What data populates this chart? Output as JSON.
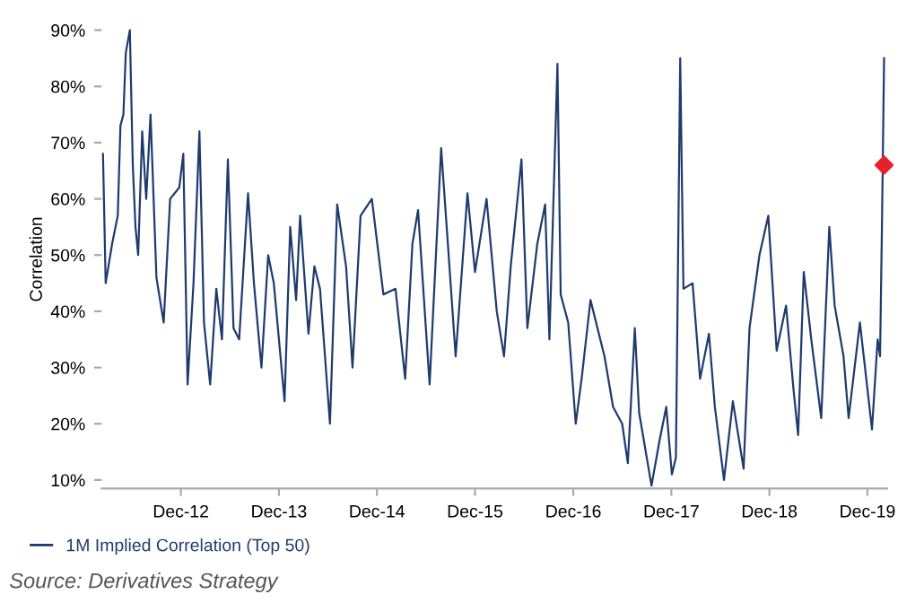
{
  "chart_data": {
    "type": "line",
    "ylabel": "Correlation",
    "x": [
      "2012-02-15",
      "2012-02-25",
      "2012-03-20",
      "2012-04-10",
      "2012-04-20",
      "2012-05-01",
      "2012-05-10",
      "2012-05-25",
      "2012-06-05",
      "2012-06-15",
      "2012-06-25",
      "2012-07-10",
      "2012-07-25",
      "2012-08-10",
      "2012-08-20",
      "2012-09-01",
      "2012-09-28",
      "2012-10-22",
      "2012-11-25",
      "2012-12-10",
      "2012-12-26",
      "2013-01-17",
      "2013-02-08",
      "2013-02-25",
      "2013-03-20",
      "2013-04-12",
      "2013-05-03",
      "2013-05-25",
      "2013-06-15",
      "2013-07-06",
      "2013-08-08",
      "2013-08-30",
      "2013-09-27",
      "2013-10-22",
      "2013-11-12",
      "2013-12-22",
      "2014-01-12",
      "2014-02-03",
      "2014-02-18",
      "2014-03-21",
      "2014-04-12",
      "2014-05-03",
      "2014-06-09",
      "2014-07-06",
      "2014-08-08",
      "2014-09-01",
      "2014-10-01",
      "2014-11-12",
      "2014-12-25",
      "2015-02-08",
      "2015-03-16",
      "2015-04-12",
      "2015-05-03",
      "2015-06-15",
      "2015-07-28",
      "2015-08-22",
      "2015-09-20",
      "2015-10-22",
      "2015-11-03",
      "2015-12-01",
      "2016-01-13",
      "2016-02-20",
      "2016-03-18",
      "2016-04-12",
      "2016-05-22",
      "2016-06-13",
      "2016-07-20",
      "2016-08-18",
      "2016-09-03",
      "2016-10-03",
      "2016-10-15",
      "2016-11-12",
      "2016-12-10",
      "2017-01-01",
      "2017-02-03",
      "2017-03-27",
      "2017-04-28",
      "2017-06-01",
      "2017-06-22",
      "2017-07-18",
      "2017-08-03",
      "2017-09-18",
      "2017-10-18",
      "2017-11-12",
      "2017-12-03",
      "2017-12-18",
      "2018-01-03",
      "2018-01-15",
      "2018-02-18",
      "2018-03-18",
      "2018-04-20",
      "2018-05-12",
      "2018-06-15",
      "2018-07-18",
      "2018-08-27",
      "2018-09-18",
      "2018-10-25",
      "2018-11-27",
      "2018-12-28",
      "2019-02-01",
      "2019-03-01",
      "2019-03-18",
      "2019-04-08",
      "2019-05-06",
      "2019-06-12",
      "2019-07-12",
      "2019-08-01",
      "2019-09-03",
      "2019-09-22",
      "2019-11-03",
      "2019-12-18",
      "2020-01-08",
      "2020-01-17",
      "2020-01-24",
      "2020-02-01"
    ],
    "series": [
      {
        "name": "1M Implied Correlation (Top 50)",
        "color": "#1f3b6e",
        "values": [
          68,
          45,
          52,
          57,
          73,
          75,
          86,
          90,
          66,
          55,
          50,
          72,
          60,
          75,
          62,
          46,
          38,
          60,
          62,
          68,
          27,
          45,
          72,
          38,
          27,
          44,
          35,
          67,
          37,
          35,
          61,
          45,
          30,
          50,
          45,
          24,
          55,
          42,
          57,
          36,
          48,
          44,
          20,
          59,
          48,
          30,
          57,
          60,
          43,
          44,
          28,
          52,
          58,
          27,
          69,
          52,
          32,
          53,
          61,
          47,
          60,
          40,
          32,
          48,
          67,
          37,
          52,
          59,
          35,
          84,
          43,
          38,
          20,
          28,
          42,
          32,
          23,
          20,
          13,
          37,
          22,
          9,
          17,
          23,
          11,
          14,
          85,
          44,
          45,
          28,
          36,
          23,
          10,
          24,
          12,
          37,
          50,
          57,
          33,
          41,
          26,
          18,
          47,
          35,
          21,
          55,
          41,
          32,
          21,
          38,
          19,
          35,
          32,
          55,
          85
        ]
      },
      {
        "type": "scatter",
        "color": "#e8202a",
        "marker": "diamond",
        "x": [
          "2020-02-01"
        ],
        "values": [
          66
        ]
      }
    ],
    "xlim": [
      "2012-02-10",
      "2020-02-12"
    ],
    "xticks": [
      {
        "value": "2012-12-01",
        "label": "Dec-12"
      },
      {
        "value": "2013-12-01",
        "label": "Dec-13"
      },
      {
        "value": "2014-12-01",
        "label": "Dec-14"
      },
      {
        "value": "2015-12-01",
        "label": "Dec-15"
      },
      {
        "value": "2016-12-01",
        "label": "Dec-16"
      },
      {
        "value": "2017-12-01",
        "label": "Dec-17"
      },
      {
        "value": "2018-12-01",
        "label": "Dec-18"
      },
      {
        "value": "2019-12-01",
        "label": "Dec-19"
      }
    ],
    "ylim": [
      8.5,
      90
    ],
    "yticks": [
      {
        "value": 10,
        "label": "10%"
      },
      {
        "value": 20,
        "label": "20%"
      },
      {
        "value": 30,
        "label": "30%"
      },
      {
        "value": 40,
        "label": "40%"
      },
      {
        "value": 50,
        "label": "50%"
      },
      {
        "value": 60,
        "label": "60%"
      },
      {
        "value": 70,
        "label": "70%"
      },
      {
        "value": 80,
        "label": "80%"
      },
      {
        "value": 90,
        "label": "90%"
      }
    ],
    "grid": false,
    "legend": "bottom left",
    "marker": "none",
    "line_style": "solid",
    "annotations": [
      "Source: Derivatives Strategy"
    ]
  }
}
